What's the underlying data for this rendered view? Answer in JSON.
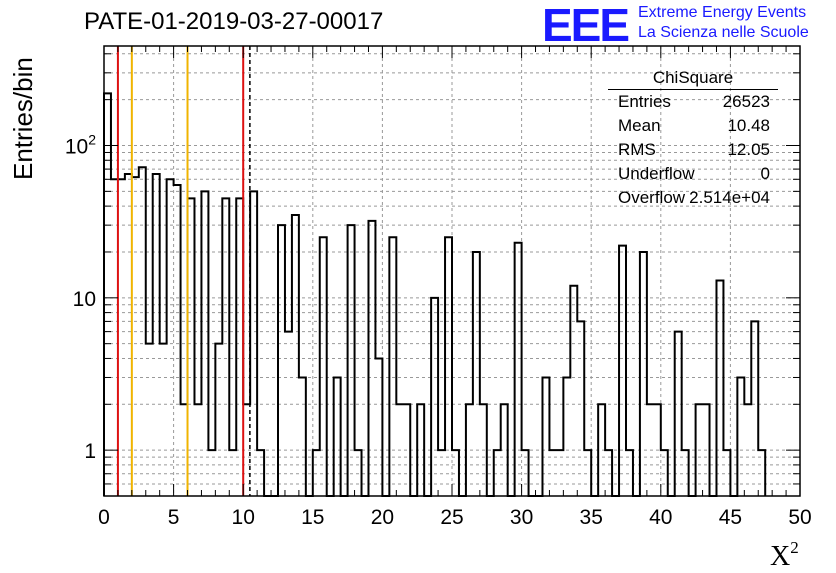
{
  "title": "PATE-01-2019-03-27-00017",
  "logo": {
    "mark": "EEE",
    "line1": "Extreme Energy Events",
    "line2": "La Scienza nelle Scuole",
    "color": "#1a1aff"
  },
  "stats_box": {
    "title": "ChiSquare",
    "rows": [
      {
        "key": "Entries",
        "value": "26523"
      },
      {
        "key": "Mean",
        "value": "10.48"
      },
      {
        "key": "RMS",
        "value": "12.05"
      },
      {
        "key": "Underflow",
        "value": "0"
      },
      {
        "key": "Overflow",
        "value": "2.514e+04"
      }
    ]
  },
  "chart_data": {
    "type": "bar",
    "title": "PATE-01-2019-03-27-00017",
    "xlabel": "X",
    "xlabel_superscript": "2",
    "ylabel": "Entries/bin",
    "xlim": [
      0,
      50
    ],
    "ylim": [
      0.5,
      450
    ],
    "y_scale": "log",
    "bin_width": 0.5,
    "grid": true,
    "x_ticks": [
      0,
      5,
      10,
      15,
      20,
      25,
      30,
      35,
      40,
      45,
      50
    ],
    "x_tick_labels": [
      "0",
      "5",
      "10",
      "15",
      "20",
      "25",
      "30",
      "35",
      "40",
      "45",
      "50"
    ],
    "y_ticks": [
      1,
      10,
      100
    ],
    "y_tick_labels": [
      "1",
      "10",
      "10^2"
    ],
    "values": [
      220,
      60,
      60,
      65,
      62,
      72,
      5,
      65,
      5,
      60,
      55,
      2,
      45,
      2,
      50,
      1,
      5,
      45,
      1,
      45,
      2,
      50,
      1,
      0.5,
      0.5,
      30,
      6,
      35,
      3,
      0.5,
      1,
      25,
      0.5,
      3,
      0.5,
      30,
      1,
      0.5,
      32,
      4,
      0.5,
      25,
      2,
      2,
      0.5,
      2,
      0.5,
      10,
      1,
      25,
      1,
      0.5,
      2,
      20,
      2,
      0.5,
      1,
      2,
      0.5,
      23,
      1,
      0.5,
      0.5,
      3,
      1,
      1,
      3,
      12,
      7,
      1,
      0.5,
      2,
      1,
      0.5,
      22,
      1,
      0.5,
      20,
      2,
      2,
      1,
      0.5,
      6,
      1,
      0.5,
      2,
      2,
      0.5,
      13,
      1,
      0.5,
      3,
      2,
      7,
      1
    ],
    "vertical_lines": [
      {
        "x": 1,
        "color": "#dd1111",
        "style": "solid"
      },
      {
        "x": 2,
        "color": "#f0b400",
        "style": "solid"
      },
      {
        "x": 6,
        "color": "#f0b400",
        "style": "solid"
      },
      {
        "x": 10,
        "color": "#dd1111",
        "style": "solid"
      },
      {
        "x": 10.48,
        "color": "#000000",
        "style": "dashed"
      }
    ]
  }
}
